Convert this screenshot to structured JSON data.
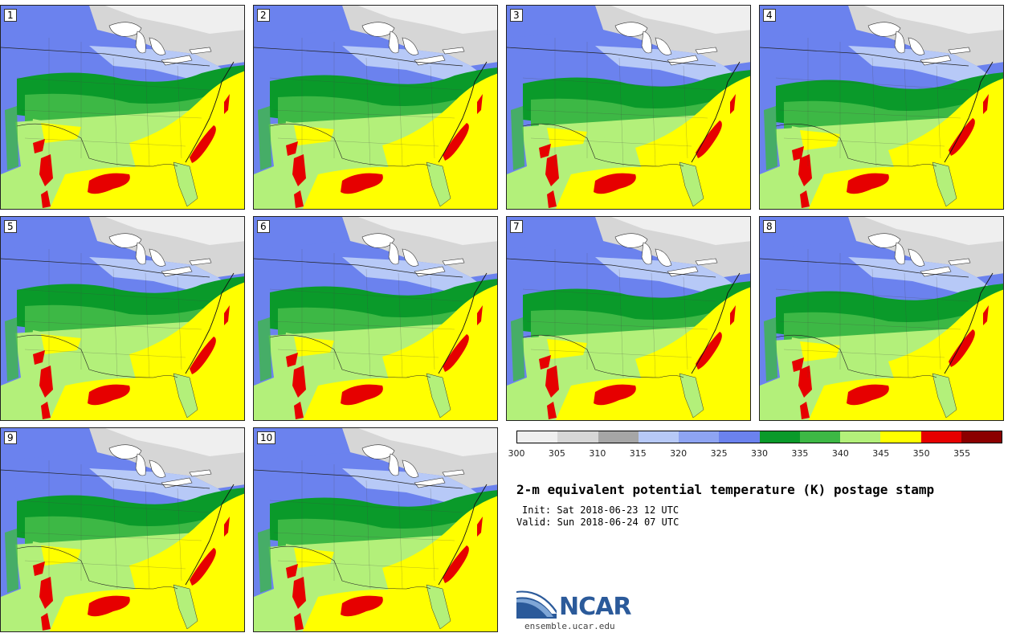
{
  "title": "2-m equivalent potential temperature (K) postage stamp",
  "init": "Init: Sat 2018-06-23 12 UTC",
  "valid": "Valid: Sun 2018-06-24 07 UTC",
  "logo": {
    "name": "NCAR",
    "url": "ensemble.ucar.edu"
  },
  "members": [
    "1",
    "2",
    "3",
    "4",
    "5",
    "6",
    "7",
    "8",
    "9",
    "10"
  ],
  "colorbar": {
    "labels": [
      "300",
      "305",
      "310",
      "315",
      "320",
      "325",
      "330",
      "335",
      "340",
      "345",
      "350",
      "355"
    ],
    "colors": [
      "#efefef",
      "#d6d6d6",
      "#a6a6a6",
      "#b7c9f7",
      "#8ea4f2",
      "#6b82ee",
      "#0a9a2a",
      "#3db845",
      "#b3f07a",
      "#ffff00",
      "#e60000",
      "#8b0000"
    ]
  },
  "map_colors": {
    "grey_light": "#efefef",
    "grey_mid": "#d6d6d6",
    "blue_light": "#b7c9f7",
    "blue_mid": "#8ea4f2",
    "blue_dark": "#6b82ee",
    "green_dark": "#0a9a2a",
    "green_mid": "#3db845",
    "green_light": "#b3f07a",
    "yellow": "#ffff00",
    "red": "#e60000",
    "water": "#ffffff"
  }
}
